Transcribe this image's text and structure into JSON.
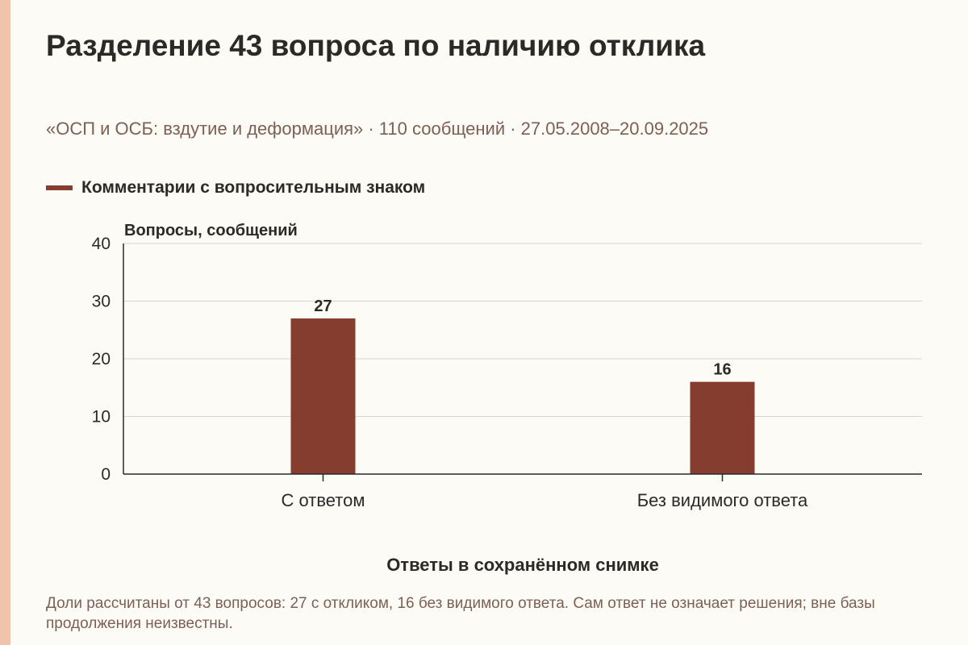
{
  "title": "Разделение 43 вопроса по наличию отклика",
  "subtitle": "«ОСП и ОСБ: вздутие и деформация» · 110 сообщений · 27.05.2008–20.09.2025",
  "footnote": "Доли рассчитаны от 43 вопросов: 27 с откликом, 16 без видимого ответа. Сам ответ не означает решения; вне базы продолжения неизвестны.",
  "colors": {
    "bar": "#843d2f",
    "accent_strip": "#efc4aa",
    "grid": "#d9d4c8",
    "axis": "#2b2a26"
  },
  "chart_data": {
    "type": "bar",
    "categories": [
      "С ответом",
      "Без видимого ответа"
    ],
    "series": [
      {
        "name": "Комментарии с вопросительным знаком",
        "values": [
          27,
          16
        ]
      }
    ],
    "data_labels": [
      "27",
      "16"
    ],
    "xlabel": "Ответы в сохранённом снимке",
    "ylabel": "Вопросы, сообщений",
    "ylim": [
      0,
      40
    ],
    "yticks": [
      0,
      10,
      20,
      30,
      40
    ],
    "grid": true,
    "legend_position": "top-left"
  }
}
